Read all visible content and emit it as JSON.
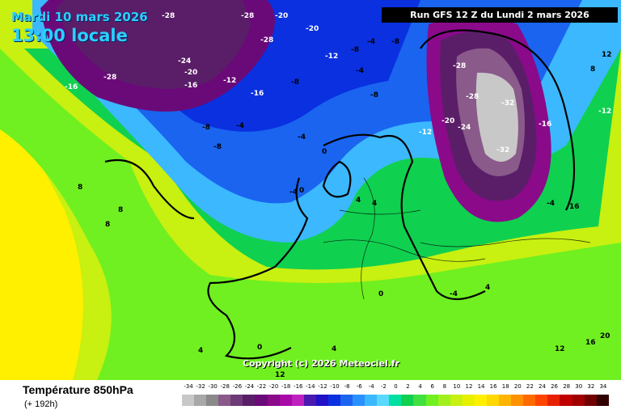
{
  "header": {
    "date": "Mardi 10 mars 2026",
    "local_time": "13:00 locale",
    "run": "Run GFS 12 Z du Lundi 2 mars 2026"
  },
  "footer": {
    "variable": "Température 850hPa",
    "lead_time": "(+ 192h)",
    "copyright": "Copyright (c) 2026 Meteociel.fr"
  },
  "scale": {
    "values": [
      "-34",
      "-32",
      "-30",
      "-28",
      "-26",
      "-24",
      "-22",
      "-20",
      "-18",
      "-16",
      "-14",
      "-12",
      "-10",
      "-8",
      "-6",
      "-4",
      "-2",
      "0",
      "2",
      "4",
      "6",
      "8",
      "10",
      "12",
      "14",
      "16",
      "18",
      "20",
      "22",
      "24",
      "26",
      "28",
      "30",
      "32",
      "34"
    ],
    "colors": [
      "#c8c8c8",
      "#a8a8a8",
      "#8a8a8a",
      "#8a5a8a",
      "#6e3a78",
      "#5a1e68",
      "#6a0a78",
      "#8a0a8a",
      "#a80aa8",
      "#c020c0",
      "#4a1ab0",
      "#2010c8",
      "#0a30e0",
      "#1a64f0",
      "#2a90ff",
      "#3cb8ff",
      "#5ad8ff",
      "#00e0a0",
      "#10d050",
      "#40e040",
      "#70f020",
      "#a0f020",
      "#c8f010",
      "#e8f000",
      "#fff000",
      "#ffd800",
      "#ffb400",
      "#ff9000",
      "#ff6a00",
      "#ff4400",
      "#e82000",
      "#c00000",
      "#a00000",
      "#700000",
      "#300000"
    ]
  },
  "map": {
    "isotherm_labels": [
      {
        "text": "-28"
      },
      {
        "text": "-28"
      },
      {
        "text": "-20"
      },
      {
        "text": "-20"
      },
      {
        "text": "-28"
      },
      {
        "text": "-16"
      },
      {
        "text": "-28"
      },
      {
        "text": "-24"
      },
      {
        "text": "-20"
      },
      {
        "text": "-16"
      },
      {
        "text": "-12"
      },
      {
        "text": "-16"
      },
      {
        "text": "-12"
      },
      {
        "text": "-8"
      },
      {
        "text": "-8"
      },
      {
        "text": "-4"
      },
      {
        "text": "-8"
      },
      {
        "text": "-12"
      },
      {
        "text": "-8"
      },
      {
        "text": "-4"
      },
      {
        "text": "-8"
      },
      {
        "text": "-4"
      },
      {
        "text": "-8"
      },
      {
        "text": "-4"
      },
      {
        "text": "-4"
      },
      {
        "text": "0"
      },
      {
        "text": "0"
      },
      {
        "text": "4"
      },
      {
        "text": "4"
      },
      {
        "text": "8"
      },
      {
        "text": "8"
      },
      {
        "text": "8"
      },
      {
        "text": "4"
      },
      {
        "text": "0"
      },
      {
        "text": "4"
      },
      {
        "text": "12"
      },
      {
        "text": "-28"
      },
      {
        "text": "-20"
      },
      {
        "text": "-24"
      },
      {
        "text": "-28"
      },
      {
        "text": "-32"
      },
      {
        "text": "-32"
      },
      {
        "text": "-16"
      },
      {
        "text": "-12"
      },
      {
        "text": "-4"
      },
      {
        "text": "4"
      },
      {
        "text": "12"
      },
      {
        "text": "8"
      },
      {
        "text": "16"
      },
      {
        "text": "12"
      },
      {
        "text": "16"
      },
      {
        "text": "20"
      },
      {
        "text": "-4"
      },
      {
        "text": "0"
      }
    ]
  }
}
